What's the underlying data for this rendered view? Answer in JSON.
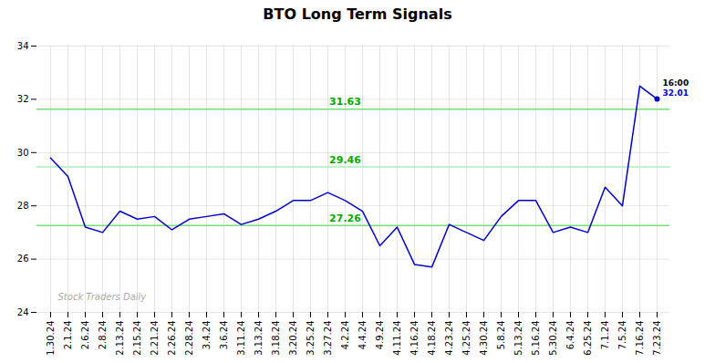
{
  "chart_data": {
    "type": "line",
    "title": "BTO Long Term Signals",
    "categories": [
      "1.30.24",
      "2.1.24",
      "2.6.24",
      "2.8.24",
      "2.13.24",
      "2.15.24",
      "2.21.24",
      "2.26.24",
      "2.28.24",
      "3.4.24",
      "3.6.24",
      "3.11.24",
      "3.13.24",
      "3.18.24",
      "3.20.24",
      "3.25.24",
      "3.27.24",
      "4.2.24",
      "4.4.24",
      "4.9.24",
      "4.11.24",
      "4.16.24",
      "4.18.24",
      "4.23.24",
      "4.25.24",
      "4.30.24",
      "5.8.24",
      "5.13.24",
      "5.16.24",
      "5.30.24",
      "6.4.24",
      "6.25.24",
      "7.1.24",
      "7.5.24",
      "7.16.24",
      "7.23.24"
    ],
    "values": [
      29.8,
      29.1,
      27.2,
      27.0,
      27.8,
      27.5,
      27.6,
      27.1,
      27.5,
      27.6,
      27.7,
      27.3,
      27.5,
      27.8,
      28.2,
      28.2,
      28.5,
      28.2,
      27.8,
      26.5,
      27.2,
      25.8,
      25.7,
      27.3,
      27.0,
      26.7,
      27.6,
      28.2,
      28.2,
      27.0,
      27.2,
      27.0,
      28.7,
      28.0,
      32.5,
      32.01
    ],
    "color": "#0000cc",
    "ylim": [
      24,
      34
    ],
    "yticks": [
      24,
      26,
      28,
      30,
      32,
      34
    ],
    "grid": true,
    "hlines": [
      {
        "y": 31.63,
        "color": "#77dd77",
        "label": "31.63",
        "label_x": "4.2.24",
        "label_color": "#00aa00"
      },
      {
        "y": 29.46,
        "color": "#aaeebb",
        "label": "29.46",
        "label_x": "4.2.24",
        "label_color": "#00aa00"
      },
      {
        "y": 27.26,
        "color": "#77dd77",
        "label": "27.26",
        "label_x": "4.2.24",
        "label_color": "#00aa00"
      }
    ],
    "point_label": {
      "x": "7.23.24",
      "y": 32.01,
      "lines": [
        {
          "text": "16:00",
          "color": "#000000"
        },
        {
          "text": "32.01",
          "color": "#0000cc"
        }
      ]
    },
    "watermark": {
      "text": "Stock Traders Daily",
      "x": "1.30.24",
      "y": 24.35,
      "color": "#aaaaaa"
    }
  }
}
